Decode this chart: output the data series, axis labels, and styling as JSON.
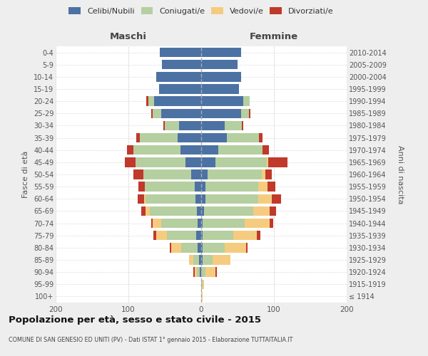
{
  "age_groups": [
    "0-4",
    "5-9",
    "10-14",
    "15-19",
    "20-24",
    "25-29",
    "30-34",
    "35-39",
    "40-44",
    "45-49",
    "50-54",
    "55-59",
    "60-64",
    "65-69",
    "70-74",
    "75-79",
    "80-84",
    "85-89",
    "90-94",
    "95-99",
    "100+"
  ],
  "birth_years": [
    "2010-2014",
    "2005-2009",
    "2000-2004",
    "1995-1999",
    "1990-1994",
    "1985-1989",
    "1980-1984",
    "1975-1979",
    "1970-1974",
    "1965-1969",
    "1960-1964",
    "1955-1959",
    "1950-1954",
    "1945-1949",
    "1940-1944",
    "1935-1939",
    "1930-1934",
    "1925-1929",
    "1920-1924",
    "1915-1919",
    "≤ 1914"
  ],
  "colors": {
    "celibi": "#4c72a4",
    "coniugati": "#b5cfa0",
    "vedovi": "#f5cc7f",
    "divorziati": "#c0392b"
  },
  "maschi": {
    "celibi": [
      57,
      54,
      62,
      58,
      65,
      55,
      30,
      32,
      28,
      22,
      14,
      9,
      8,
      6,
      5,
      7,
      5,
      3,
      2,
      0,
      0
    ],
    "coniugati": [
      0,
      0,
      0,
      0,
      8,
      12,
      20,
      52,
      65,
      68,
      65,
      68,
      68,
      65,
      50,
      40,
      22,
      8,
      4,
      0,
      0
    ],
    "vedovi": [
      0,
      0,
      0,
      0,
      0,
      0,
      0,
      0,
      0,
      0,
      0,
      0,
      2,
      5,
      12,
      15,
      14,
      6,
      3,
      0,
      0
    ],
    "divorziati": [
      0,
      0,
      0,
      0,
      2,
      2,
      2,
      5,
      9,
      15,
      14,
      9,
      9,
      6,
      2,
      4,
      2,
      0,
      2,
      0,
      0
    ]
  },
  "femmine": {
    "celibi": [
      55,
      50,
      55,
      52,
      58,
      55,
      32,
      35,
      24,
      20,
      9,
      6,
      6,
      4,
      2,
      2,
      2,
      2,
      0,
      0,
      0
    ],
    "coniugati": [
      0,
      0,
      0,
      0,
      9,
      11,
      24,
      44,
      60,
      70,
      74,
      72,
      72,
      68,
      58,
      42,
      30,
      14,
      6,
      2,
      0
    ],
    "vedovi": [
      0,
      0,
      0,
      0,
      0,
      0,
      0,
      0,
      0,
      2,
      5,
      13,
      19,
      22,
      34,
      32,
      30,
      24,
      14,
      2,
      2
    ],
    "divorziati": [
      0,
      0,
      0,
      0,
      0,
      2,
      2,
      5,
      9,
      27,
      9,
      11,
      13,
      9,
      5,
      5,
      2,
      0,
      2,
      0,
      0
    ]
  },
  "xlim": 200,
  "title": "Popolazione per età, sesso e stato civile - 2015",
  "subtitle": "COMUNE DI SAN GENESIO ED UNITI (PV) - Dati ISTAT 1° gennaio 2015 - Elaborazione TUTTAITALIA.IT",
  "ylabel_left": "Fasce di età",
  "ylabel_right": "Anni di nascita",
  "header_maschi": "Maschi",
  "header_femmine": "Femmine",
  "legend_labels": [
    "Celibi/Nubili",
    "Coniugati/e",
    "Vedovi/e",
    "Divorziati/e"
  ],
  "bg_color": "#eeeeee",
  "plot_bg": "#ffffff"
}
